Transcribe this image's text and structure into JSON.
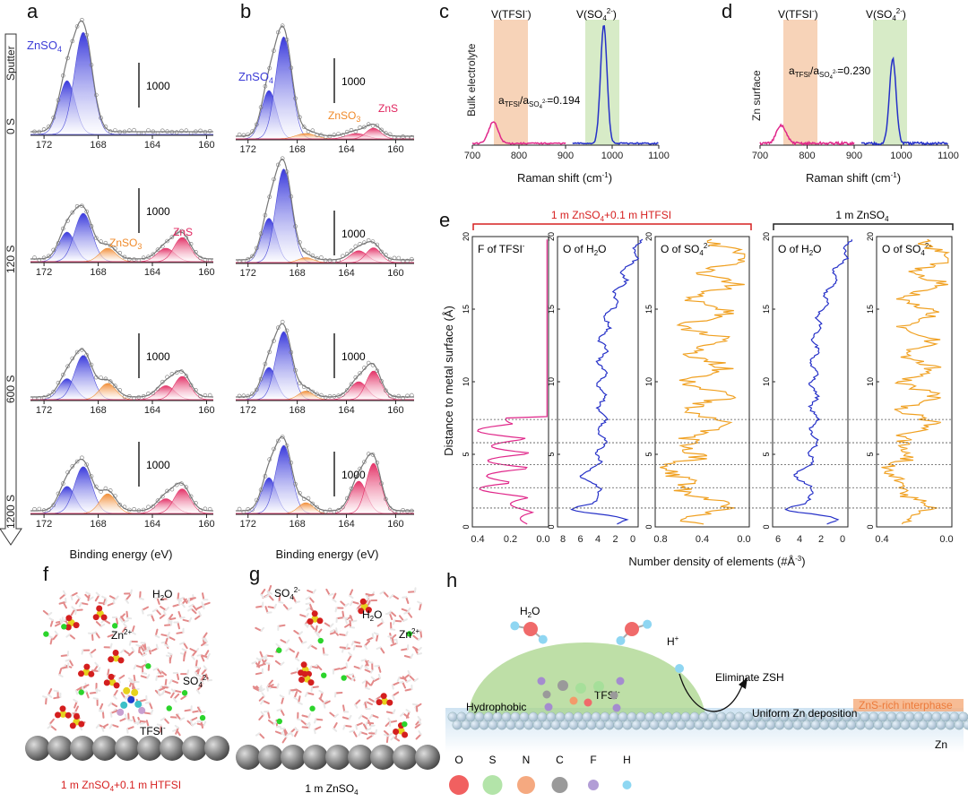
{
  "panels": {
    "a": "a",
    "b": "b",
    "c": "c",
    "d": "d",
    "e": "e",
    "f": "f",
    "g": "g",
    "h": "h"
  },
  "xps": {
    "sputter_label": "Sputter",
    "time_labels": [
      "0 S",
      "120 S",
      "600 S",
      "1200 S"
    ],
    "xlabel": "Binding energy (eV)",
    "ticks_a": [
      "172",
      "168",
      "164",
      "160"
    ],
    "ticks_b": [
      "172",
      "168",
      "164",
      "160"
    ],
    "scale_label": "1000",
    "species": {
      "znso4": "ZnSO",
      "znso4_sub": "4",
      "znso3": "ZnSO",
      "znso3_sub": "3",
      "zns": "ZnS"
    },
    "colors": {
      "blue": "#3b3bd6",
      "orange": "#f08a2a",
      "red": "#e0245e",
      "fit": "#777777"
    }
  },
  "raman": {
    "xlabel": "Raman shift (cm",
    "xlabel_sup": "-1",
    "xlabel_end": ")",
    "ticks": [
      "700",
      "800",
      "900",
      "1000",
      "1100"
    ],
    "band1": "V(TFSI",
    "band1_sup": "-",
    "band2": "V(SO",
    "band2_sub": "4",
    "band2_sup": "2-",
    "c_ylabel": "Bulk electrolyte",
    "d_ylabel": "Zn surface",
    "c_ratio_val": "=0.194",
    "d_ratio_val": "=0.230",
    "ratio_a": "a",
    "ratio_tfsi": "TFSI",
    "ratio_slash": "/a",
    "ratio_so4": "SO",
    "ratio_so4_sub": "4",
    "ratio_so4_sup": "2-",
    "colors": {
      "tfsi": "#e0278a",
      "so4": "#2530c8",
      "band_tfsi": "#f7d3b8",
      "band_so4": "#d7ebc7"
    }
  },
  "md": {
    "group1": "1 m ZnSO",
    "group1_sub": "4",
    "group1_end": "+0.1 m HTFSI",
    "group2": "1 m ZnSO",
    "group2_sub": "4",
    "ylabel": "Distance to metal surface (Å)",
    "xlabel": "Number density of elements (#Å",
    "xlabel_sup": "-3",
    "xlabel_end": ")",
    "yticks": [
      "0",
      "5",
      "10",
      "15",
      "20"
    ],
    "sub1": "F of TFSI",
    "sub1_sup": "-",
    "sub2": "O of H",
    "sub2_sub": "2",
    "sub2_end": "O",
    "sub3": "O of SO",
    "sub3_sub": "4",
    "sub3_sup": "2-",
    "xt1": [
      "0.4",
      "0.2",
      "0.0"
    ],
    "xt2": [
      "8",
      "6",
      "4",
      "2",
      "0"
    ],
    "xt3": [
      "0.8",
      "0.4",
      "0.0"
    ],
    "xt4": [
      "6",
      "4",
      "2",
      "0"
    ],
    "xt5": [
      "0.4",
      "0.0"
    ],
    "dashed_at": [
      7.4,
      5.8,
      4.3,
      2.7,
      1.3
    ],
    "colors": {
      "f": "#e0278a",
      "h2o": "#2530c8",
      "so4": "#f0a020",
      "group1": "#d62020"
    }
  },
  "snapshots": {
    "f_caption": "1 m ZnSO",
    "f_caption_sub": "4",
    "f_caption_end": "+0.1 m HTFSI",
    "g_caption": "1 m ZnSO",
    "g_caption_sub": "4",
    "h2o": "H",
    "h2o_sub": "2",
    "h2o_end": "O",
    "zn": "Zn",
    "zn_sup": "2+",
    "so4": "SO",
    "so4_sub": "4",
    "so4_sup": "2-",
    "tfsi": "TFSI",
    "tfsi_sup": "-"
  },
  "schematic": {
    "hydrophobic": "Hydrophobic",
    "tfsi": "TFSI",
    "tfsi_sup": "-",
    "hplus": "H",
    "hplus_sup": "+",
    "eliminate": "Eliminate ZSH",
    "uniform": "Uniform Zn deposition",
    "zns_interphase": "ZnS-rich interphase",
    "zn": "Zn",
    "h2o": "H",
    "h2o_sub": "2",
    "h2o_end": "O",
    "legend": [
      "O",
      "S",
      "N",
      "C",
      "F",
      "H"
    ],
    "legend_colors": [
      "#ee4444",
      "#a6df9a",
      "#f39a6a",
      "#888888",
      "#a48ccf",
      "#7ad0f0"
    ]
  }
}
